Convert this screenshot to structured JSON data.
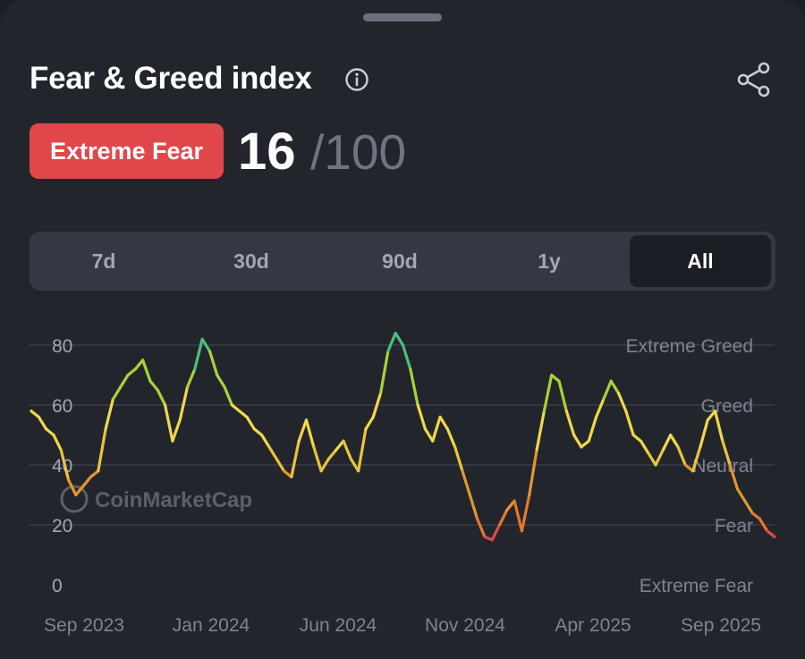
{
  "header": {
    "title": "Fear & Greed index",
    "info_icon": "info-icon",
    "share_icon": "share-icon"
  },
  "status": {
    "label": "Extreme Fear",
    "value": "16",
    "max": "/100",
    "color": "#e0474a"
  },
  "tabs": [
    {
      "label": "7d",
      "active": false
    },
    {
      "label": "30d",
      "active": false
    },
    {
      "label": "90d",
      "active": false
    },
    {
      "label": "1y",
      "active": false
    },
    {
      "label": "All",
      "active": true
    }
  ],
  "chart_data": {
    "type": "line",
    "title": "Fear & Greed index",
    "watermark": "CoinMarketCap",
    "x_labels": [
      "Sep 2023",
      "Jan 2024",
      "Jun 2024",
      "Nov 2024",
      "Apr 2025",
      "Sep 2025"
    ],
    "y_ticks": [
      0,
      20,
      40,
      60,
      80
    ],
    "zone_labels": [
      {
        "label": "Extreme Greed",
        "value": 80
      },
      {
        "label": "Greed",
        "value": 60
      },
      {
        "label": "Neutral",
        "value": 40
      },
      {
        "label": "Fear",
        "value": 20
      },
      {
        "label": "Extreme Fear",
        "value": 0
      }
    ],
    "ylim": [
      0,
      80
    ],
    "xlim": [
      0,
      100
    ],
    "series": [
      {
        "name": "Fear & Greed",
        "x": [
          0,
          1,
          2,
          3,
          4,
          5,
          6,
          7,
          8,
          9,
          10,
          11,
          12,
          13,
          14,
          15,
          16,
          17,
          18,
          19,
          20,
          21,
          22,
          23,
          24,
          25,
          26,
          27,
          28,
          29,
          30,
          31,
          32,
          33,
          34,
          35,
          36,
          37,
          38,
          39,
          40,
          41,
          42,
          43,
          44,
          45,
          46,
          47,
          48,
          49,
          50,
          51,
          52,
          53,
          54,
          55,
          56,
          57,
          58,
          59,
          60,
          61,
          62,
          63,
          64,
          65,
          66,
          67,
          68,
          69,
          70,
          71,
          72,
          73,
          74,
          75,
          76,
          77,
          78,
          79,
          80,
          81,
          82,
          83,
          84,
          85,
          86,
          87,
          88,
          89,
          90,
          91,
          92,
          93,
          94,
          95,
          96,
          97,
          98,
          99,
          100
        ],
        "values": [
          58,
          56,
          52,
          50,
          45,
          35,
          30,
          33,
          36,
          38,
          52,
          62,
          66,
          70,
          72,
          75,
          68,
          65,
          60,
          48,
          55,
          66,
          72,
          82,
          78,
          70,
          66,
          60,
          58,
          56,
          52,
          50,
          46,
          42,
          38,
          36,
          48,
          55,
          46,
          38,
          42,
          45,
          48,
          42,
          38,
          52,
          56,
          64,
          78,
          84,
          80,
          72,
          60,
          52,
          48,
          56,
          52,
          46,
          38,
          30,
          22,
          16,
          15,
          20,
          25,
          28,
          18,
          30,
          45,
          58,
          70,
          68,
          58,
          50,
          46,
          48,
          56,
          62,
          68,
          64,
          58,
          50,
          48,
          44,
          40,
          45,
          50,
          46,
          40,
          38,
          46,
          55,
          58,
          48,
          40,
          32,
          28,
          24,
          22,
          18,
          16
        ]
      }
    ]
  }
}
